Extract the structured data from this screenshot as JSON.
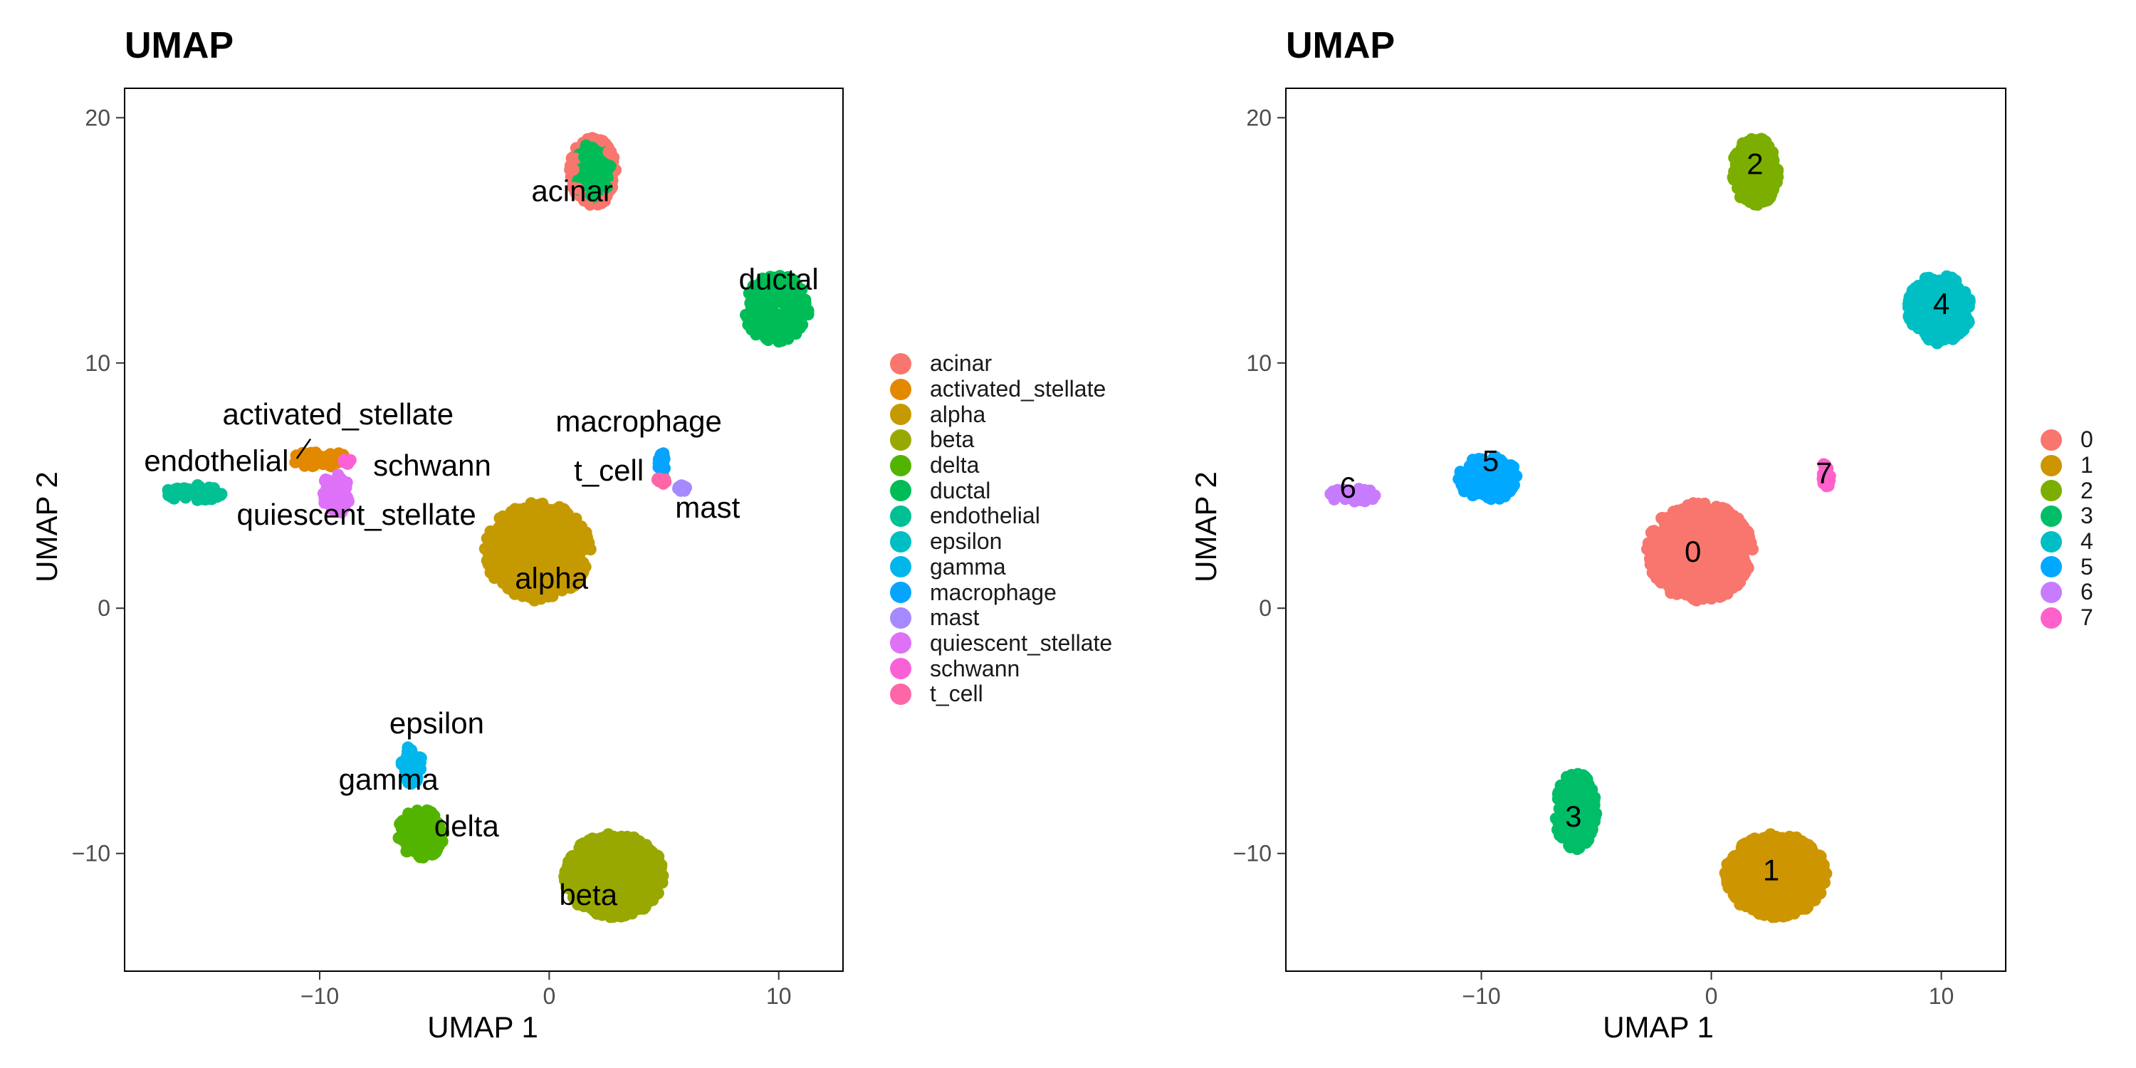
{
  "chart_data": [
    {
      "type": "scatter",
      "title": "UMAP",
      "xlabel": "UMAP 1",
      "ylabel": "UMAP 2",
      "xlim": [
        -18.5,
        12.8
      ],
      "ylim": [
        -14.8,
        21.2
      ],
      "xticks": [
        -10,
        0,
        10
      ],
      "yticks": [
        -10,
        0,
        10,
        20
      ],
      "grid": false,
      "legend_position": "right",
      "legend": [
        "acinar",
        "activated_stellate",
        "alpha",
        "beta",
        "delta",
        "ductal",
        "endothelial",
        "epsilon",
        "gamma",
        "macrophage",
        "mast",
        "quiescent_stellate",
        "schwann",
        "t_cell"
      ],
      "colors": [
        "#F8766D",
        "#E38900",
        "#C49A00",
        "#99A800",
        "#53B400",
        "#00BC56",
        "#00C094",
        "#00BFC4",
        "#00B6EB",
        "#06A4FF",
        "#A58AFF",
        "#DF70F8",
        "#FB61D7",
        "#FF66A8"
      ],
      "clusters": [
        {
          "name": "acinar",
          "color": "#00BC56",
          "ring": "#F8766D",
          "center": [
            1.9,
            17.8
          ],
          "spread": [
            1.0,
            1.4
          ],
          "share": 0.09
        },
        {
          "name": "activated_stellate",
          "color": "#E38900",
          "center": [
            -10.0,
            6.1
          ],
          "spread": [
            1.2,
            0.35
          ],
          "share": 0.02
        },
        {
          "name": "alpha",
          "color": "#C49A00",
          "center": [
            -0.5,
            2.3
          ],
          "spread": [
            2.3,
            2.0
          ],
          "share": 0.23
        },
        {
          "name": "beta",
          "color": "#99A800",
          "center": [
            2.8,
            -10.9
          ],
          "spread": [
            2.2,
            1.7
          ],
          "share": 0.22
        },
        {
          "name": "delta",
          "color": "#53B400",
          "center": [
            -5.6,
            -9.2
          ],
          "spread": [
            1.0,
            1.0
          ],
          "share": 0.05
        },
        {
          "name": "ductal",
          "color": "#00BC56",
          "center": [
            9.9,
            12.2
          ],
          "spread": [
            1.4,
            1.4
          ],
          "share": 0.08
        },
        {
          "name": "endothelial",
          "color": "#00C094",
          "center": [
            -15.5,
            4.7
          ],
          "spread": [
            1.3,
            0.35
          ],
          "share": 0.015
        },
        {
          "name": "gamma",
          "color": "#00B6EB",
          "center": [
            -6.0,
            -6.4
          ],
          "spread": [
            0.45,
            0.8
          ],
          "share": 0.02
        },
        {
          "name": "macrophage",
          "color": "#06A4FF",
          "center": [
            4.9,
            5.9
          ],
          "spread": [
            0.15,
            0.5
          ],
          "share": 0.006
        },
        {
          "name": "mast",
          "color": "#A58AFF",
          "center": [
            5.8,
            4.9
          ],
          "spread": [
            0.3,
            0.15
          ],
          "share": 0.003
        },
        {
          "name": "quiescent_stellate",
          "color": "#DF70F8",
          "center": [
            -9.3,
            4.7
          ],
          "spread": [
            0.6,
            0.9
          ],
          "share": 0.02
        },
        {
          "name": "schwann",
          "color": "#FB61D7",
          "center": [
            -8.8,
            6.0
          ],
          "spread": [
            0.15,
            0.15
          ],
          "share": 0.002
        },
        {
          "name": "t_cell",
          "color": "#FF66A8",
          "center": [
            4.9,
            5.2
          ],
          "spread": [
            0.2,
            0.15
          ],
          "share": 0.003
        }
      ],
      "annotations": [
        {
          "text": "acinar",
          "x": 1.0,
          "y": 16.6
        },
        {
          "text": "ductal",
          "x": 10.0,
          "y": 13.0
        },
        {
          "text": "activated_stellate",
          "x": -9.2,
          "y": 7.5
        },
        {
          "text": "macrophage",
          "x": 3.9,
          "y": 7.2
        },
        {
          "text": "endothelial",
          "x": -14.5,
          "y": 5.6
        },
        {
          "text": "schwann",
          "x": -5.1,
          "y": 5.4
        },
        {
          "text": "t_cell",
          "x": 2.6,
          "y": 5.2
        },
        {
          "text": "mast",
          "x": 6.9,
          "y": 3.7
        },
        {
          "text": "quiescent_stellate",
          "x": -8.4,
          "y": 3.4
        },
        {
          "text": "alpha",
          "x": 0.1,
          "y": 0.8
        },
        {
          "text": "epsilon",
          "x": -4.9,
          "y": -5.1
        },
        {
          "text": "gamma",
          "x": -7.0,
          "y": -7.4
        },
        {
          "text": "delta",
          "x": -3.6,
          "y": -9.3
        },
        {
          "text": "beta",
          "x": 1.7,
          "y": -12.1
        }
      ]
    },
    {
      "type": "scatter",
      "title": "UMAP",
      "xlabel": "UMAP 1",
      "ylabel": "UMAP 2",
      "xlim": [
        -18.5,
        12.8
      ],
      "ylim": [
        -14.8,
        21.2
      ],
      "xticks": [
        -10,
        0,
        10
      ],
      "yticks": [
        -10,
        0,
        10,
        20
      ],
      "grid": false,
      "legend_position": "right",
      "legend": [
        "0",
        "1",
        "2",
        "3",
        "4",
        "5",
        "6",
        "7"
      ],
      "colors": [
        "#F8766D",
        "#CD9600",
        "#7CAE00",
        "#00BE67",
        "#00BFC4",
        "#00A9FF",
        "#C77CFF",
        "#FF61CC"
      ],
      "clusters": [
        {
          "name": "0",
          "color": "#F8766D",
          "center": [
            -0.5,
            2.3
          ],
          "spread": [
            2.3,
            2.0
          ],
          "share": 0.29
        },
        {
          "name": "1",
          "color": "#CD9600",
          "center": [
            2.8,
            -10.9
          ],
          "spread": [
            2.2,
            1.7
          ],
          "share": 0.24
        },
        {
          "name": "2",
          "color": "#7CAE00",
          "center": [
            1.9,
            17.8
          ],
          "spread": [
            1.0,
            1.4
          ],
          "share": 0.1
        },
        {
          "name": "3",
          "color": "#00BE67",
          "center": [
            -5.9,
            -8.3
          ],
          "spread": [
            0.9,
            1.6
          ],
          "share": 0.08
        },
        {
          "name": "4",
          "color": "#00BFC4",
          "center": [
            9.9,
            12.2
          ],
          "spread": [
            1.4,
            1.4
          ],
          "share": 0.09
        },
        {
          "name": "5",
          "color": "#00A9FF",
          "center": [
            -9.7,
            5.3
          ],
          "spread": [
            1.3,
            0.9
          ],
          "share": 0.05
        },
        {
          "name": "6",
          "color": "#C77CFF",
          "center": [
            -15.6,
            4.6
          ],
          "spread": [
            1.0,
            0.3
          ],
          "share": 0.015
        },
        {
          "name": "7",
          "color": "#FF61CC",
          "center": [
            5.0,
            5.5
          ],
          "spread": [
            0.2,
            0.6
          ],
          "share": 0.008
        }
      ],
      "annotations": [
        {
          "text": "0",
          "x": -0.8,
          "y": 1.9
        },
        {
          "text": "1",
          "x": 2.6,
          "y": -11.1
        },
        {
          "text": "2",
          "x": 1.9,
          "y": 17.7
        },
        {
          "text": "3",
          "x": -6.0,
          "y": -8.9
        },
        {
          "text": "4",
          "x": 10.0,
          "y": 12.0
        },
        {
          "text": "5",
          "x": -9.6,
          "y": 5.6
        },
        {
          "text": "6",
          "x": -15.8,
          "y": 4.5
        },
        {
          "text": "7",
          "x": 4.9,
          "y": 5.1
        }
      ]
    }
  ]
}
